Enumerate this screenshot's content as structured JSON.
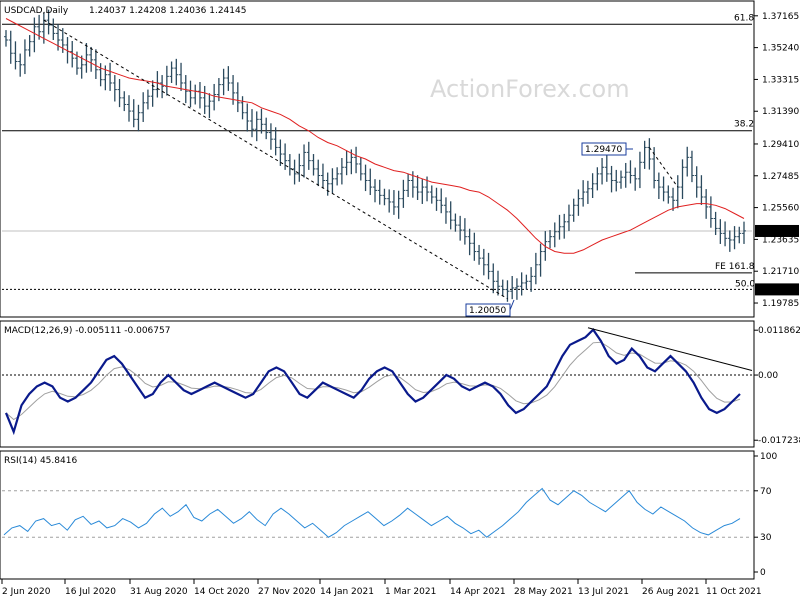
{
  "chart_data": [
    {
      "type": "candlestick",
      "title": "USDCAD,Daily",
      "ohlc": "1.24037 1.24208 1.24036 1.24145",
      "watermark": "ActionForex.com",
      "y_ticks": [
        "1.37165",
        "1.35240",
        "1.33315",
        "1.31390",
        "1.29410",
        "1.27485",
        "1.25560",
        "1.23635",
        "1.21710",
        "1.19785"
      ],
      "ylim": [
        1.19,
        1.38
      ],
      "x_labels": [
        "2 Jun 2020",
        "16 Jul 2020",
        "31 Aug 2020",
        "14 Oct 2020",
        "27 Nov 2020",
        "14 Jan 2021",
        "1 Mar 2021",
        "14 Apr 2021",
        "28 May 2021",
        "13 Jul 2021",
        "26 Aug 2021",
        "11 Oct 2021"
      ],
      "last_price": "1.24145",
      "levels": [
        {
          "label": "61.8",
          "value": 1.3665
        },
        {
          "label": "38.2",
          "value": 1.3021
        },
        {
          "label": "50.0",
          "value": 1.2061,
          "badge": "1.20610"
        },
        {
          "label": "FE 161.8",
          "value": 1.2161
        }
      ],
      "annotations": [
        {
          "label": "1.29470",
          "value": 1.2947
        },
        {
          "label": "1.20050",
          "value": 1.2005
        }
      ],
      "close_series": [
        1.357,
        1.349,
        1.344,
        1.342,
        1.351,
        1.356,
        1.365,
        1.362,
        1.369,
        1.366,
        1.361,
        1.357,
        1.354,
        1.35,
        1.346,
        1.34,
        1.342,
        1.348,
        1.345,
        1.339,
        1.333,
        1.336,
        1.331,
        1.327,
        1.322,
        1.318,
        1.314,
        1.309,
        1.313,
        1.319,
        1.323,
        1.327,
        1.331,
        1.329,
        1.335,
        1.34,
        1.336,
        1.331,
        1.326,
        1.322,
        1.326,
        1.322,
        1.317,
        1.32,
        1.324,
        1.33,
        1.334,
        1.331,
        1.325,
        1.319,
        1.313,
        1.308,
        1.303,
        1.309,
        1.306,
        1.301,
        1.297,
        1.292,
        1.288,
        1.284,
        1.279,
        1.276,
        1.281,
        1.289,
        1.284,
        1.279,
        1.275,
        1.272,
        1.27,
        1.273,
        1.276,
        1.28,
        1.283,
        1.286,
        1.282,
        1.276,
        1.272,
        1.268,
        1.266,
        1.263,
        1.261,
        1.259,
        1.256,
        1.261,
        1.266,
        1.272,
        1.268,
        1.265,
        1.268,
        1.265,
        1.262,
        1.26,
        1.257,
        1.253,
        1.248,
        1.245,
        1.242,
        1.238,
        1.234,
        1.229,
        1.225,
        1.221,
        1.217,
        1.211,
        1.208,
        1.206,
        1.205,
        1.207,
        1.208,
        1.21,
        1.211,
        1.214,
        1.221,
        1.229,
        1.235,
        1.238,
        1.241,
        1.244,
        1.247,
        1.251,
        1.257,
        1.261,
        1.265,
        1.267,
        1.27,
        1.276,
        1.28,
        1.276,
        1.272,
        1.271,
        1.274,
        1.277,
        1.275,
        1.273,
        1.283,
        1.292,
        1.285,
        1.272,
        1.268,
        1.265,
        1.262,
        1.26,
        1.268,
        1.28,
        1.286,
        1.275,
        1.268,
        1.262,
        1.256,
        1.249,
        1.243,
        1.24,
        1.237,
        1.236,
        1.238,
        1.24,
        1.2415
      ],
      "sma_series": [
        1.37,
        1.367,
        1.364,
        1.361,
        1.358,
        1.355,
        1.352,
        1.349,
        1.346,
        1.343,
        1.34,
        1.338,
        1.336,
        1.334,
        1.333,
        1.332,
        1.331,
        1.329,
        1.328,
        1.327,
        1.326,
        1.325,
        1.323,
        1.322,
        1.321,
        1.32,
        1.319,
        1.316,
        1.314,
        1.312,
        1.309,
        1.305,
        1.302,
        1.298,
        1.295,
        1.293,
        1.29,
        1.287,
        1.285,
        1.282,
        1.28,
        1.278,
        1.277,
        1.275,
        1.273,
        1.271,
        1.27,
        1.269,
        1.268,
        1.266,
        1.265,
        1.262,
        1.258,
        1.254,
        1.249,
        1.243,
        1.237,
        1.232,
        1.229,
        1.228,
        1.228,
        1.23,
        1.233,
        1.236,
        1.238,
        1.24,
        1.242,
        1.245,
        1.248,
        1.251,
        1.254,
        1.256,
        1.257,
        1.258,
        1.258,
        1.257,
        1.255,
        1.252,
        1.249
      ],
      "trendline_label": "",
      "series": [
        {
          "name": "",
          "values": []
        }
      ]
    },
    {
      "type": "line",
      "title": "MACD(12,26,9) -0.005111 -0.006757",
      "y_ticks": [
        "0.011862",
        "0.00",
        "-0.017238"
      ],
      "ylim": [
        -0.0185,
        0.0135
      ],
      "zero_line": 0.0,
      "macd": [
        -0.01,
        -0.015,
        -0.008,
        -0.005,
        -0.003,
        -0.002,
        -0.003,
        -0.006,
        -0.007,
        -0.006,
        -0.004,
        -0.002,
        0.001,
        0.004,
        0.005,
        0.003,
        0.0,
        -0.003,
        -0.006,
        -0.005,
        -0.002,
        0.0,
        -0.002,
        -0.004,
        -0.005,
        -0.004,
        -0.003,
        -0.002,
        -0.003,
        -0.004,
        -0.005,
        -0.006,
        -0.005,
        -0.002,
        0.001,
        0.002,
        0.001,
        -0.002,
        -0.005,
        -0.006,
        -0.004,
        -0.002,
        -0.003,
        -0.004,
        -0.005,
        -0.006,
        -0.004,
        -0.001,
        0.001,
        0.002,
        0.001,
        -0.002,
        -0.005,
        -0.007,
        -0.006,
        -0.004,
        -0.002,
        0.0,
        -0.001,
        -0.003,
        -0.004,
        -0.003,
        -0.002,
        -0.003,
        -0.005,
        -0.008,
        -0.01,
        -0.009,
        -0.007,
        -0.005,
        -0.003,
        0.001,
        0.005,
        0.008,
        0.009,
        0.01,
        0.012,
        0.009,
        0.005,
        0.003,
        0.004,
        0.007,
        0.005,
        0.002,
        0.001,
        0.003,
        0.005,
        0.003,
        0.001,
        -0.002,
        -0.006,
        -0.009,
        -0.01,
        -0.009,
        -0.007,
        -0.005
      ],
      "trendline_label": ""
    },
    {
      "type": "line",
      "title": "RSI(14) 45.8416",
      "y_ticks": [
        "100",
        "70",
        "30",
        "0"
      ],
      "ylim": [
        0,
        100
      ],
      "levels": [
        70,
        30
      ],
      "rsi": [
        32,
        38,
        40,
        35,
        44,
        46,
        40,
        42,
        36,
        45,
        48,
        41,
        44,
        38,
        40,
        46,
        43,
        38,
        42,
        50,
        55,
        48,
        52,
        58,
        47,
        44,
        50,
        54,
        48,
        42,
        46,
        52,
        45,
        40,
        50,
        55,
        50,
        44,
        38,
        42,
        36,
        30,
        34,
        40,
        44,
        48,
        52,
        46,
        40,
        44,
        49,
        55,
        50,
        45,
        40,
        44,
        48,
        42,
        38,
        33,
        36,
        30,
        35,
        40,
        46,
        52,
        60,
        66,
        72,
        62,
        58,
        64,
        70,
        66,
        60,
        56,
        52,
        58,
        64,
        70,
        60,
        54,
        50,
        56,
        52,
        48,
        44,
        38,
        34,
        32,
        36,
        40,
        42,
        46
      ]
    }
  ]
}
